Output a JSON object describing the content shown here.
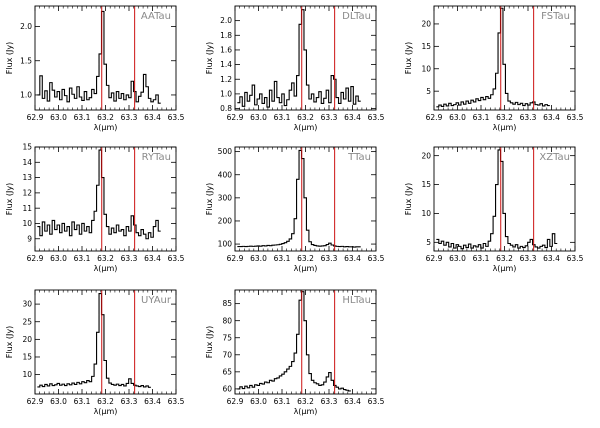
{
  "colors": {
    "line": "#000000",
    "marker": "#cc1010",
    "frame": "#000000",
    "title": "#8a8a8a"
  },
  "chart_data": [
    {
      "type": "line",
      "title": "AATau",
      "xlabel": "λ(μm)",
      "ylabel": "Flux (Jy)",
      "xlim": [
        62.9,
        63.5
      ],
      "ylim": [
        0.78,
        2.3
      ],
      "xticks": [
        62.9,
        63.0,
        63.1,
        63.2,
        63.3,
        63.4,
        63.5
      ],
      "xtick_labels": [
        "62.9",
        "63.0",
        "63.1",
        "63.2",
        "63.3",
        "63.4",
        "63.5"
      ],
      "yticks": [
        1.0,
        1.5,
        2.0
      ],
      "ytick_labels": [
        "1.0",
        "1.5",
        "2.0"
      ],
      "vlines": [
        63.184,
        63.324
      ],
      "series": [
        {
          "name": "AATau",
          "x_start": 62.91,
          "x_step": 0.0105,
          "values": [
            1.0,
            1.28,
            0.95,
            1.06,
            0.91,
            1.18,
            1.07,
            0.97,
            1.05,
            0.93,
            1.08,
            0.99,
            0.9,
            1.1,
            1.01,
            0.95,
            1.12,
            0.97,
            0.92,
            1.05,
            0.93,
            0.96,
            1.08,
            1.02,
            1.27,
            1.6,
            2.22,
            1.45,
            1.14,
            0.96,
            1.03,
            0.91,
            1.05,
            0.95,
            1.02,
            0.93,
            1.0,
            0.96,
            1.2,
            1.05,
            0.9,
            0.98,
            1.04,
            1.3,
            1.12,
            0.95,
            0.9,
            0.93,
            1.0,
            0.88
          ]
        }
      ]
    },
    {
      "type": "line",
      "title": "DLTau",
      "xlabel": "λ(μm)",
      "ylabel": "Flux (Jy)",
      "xlim": [
        62.9,
        63.5
      ],
      "ylim": [
        0.78,
        2.2
      ],
      "xticks": [
        62.9,
        63.0,
        63.1,
        63.2,
        63.3,
        63.4,
        63.5
      ],
      "xtick_labels": [
        "62.9",
        "63.0",
        "63.1",
        "63.2",
        "63.3",
        "63.4",
        "63.5"
      ],
      "yticks": [
        0.8,
        1.0,
        1.2,
        1.4,
        1.6,
        1.8,
        2.0
      ],
      "ytick_labels": [
        "0.8",
        "1.0",
        "1.2",
        "1.4",
        "1.6",
        "1.8",
        "2.0"
      ],
      "vlines": [
        63.184,
        63.324
      ],
      "series": [
        {
          "name": "DLTau",
          "x_start": 62.91,
          "x_step": 0.0105,
          "values": [
            0.88,
            0.96,
            0.83,
            1.02,
            0.9,
            0.98,
            1.12,
            0.85,
            0.93,
            1.0,
            0.87,
            0.95,
            0.82,
            1.05,
            0.9,
            1.17,
            0.95,
            0.88,
            1.0,
            0.84,
            0.92,
            1.05,
            1.15,
            0.97,
            1.25,
            1.95,
            2.15,
            1.6,
            1.12,
            0.93,
            1.0,
            0.89,
            0.95,
            1.03,
            0.87,
            0.94,
            1.05,
            0.88,
            1.25,
            1.2,
            0.95,
            0.87,
            1.02,
            0.93,
            1.08,
            0.9,
            1.1,
            0.86,
            0.97,
            0.9
          ]
        }
      ]
    },
    {
      "type": "line",
      "title": "FSTau",
      "xlabel": "λ(μm)",
      "ylabel": "Flux (Jy)",
      "xlim": [
        62.9,
        63.5
      ],
      "ylim": [
        0.8,
        24
      ],
      "xticks": [
        62.9,
        63.0,
        63.1,
        63.2,
        63.3,
        63.4,
        63.5
      ],
      "xtick_labels": [
        "62.9",
        "63.0",
        "63.1",
        "63.2",
        "63.3",
        "63.4",
        "63.5"
      ],
      "yticks": [
        5,
        10,
        15,
        20
      ],
      "ytick_labels": [
        "5",
        "10",
        "15",
        "20"
      ],
      "vlines": [
        63.184,
        63.324
      ],
      "series": [
        {
          "name": "FSTau",
          "x_start": 62.91,
          "x_step": 0.0105,
          "values": [
            1.5,
            1.9,
            1.6,
            2.1,
            1.7,
            2.3,
            1.8,
            2.0,
            2.4,
            1.9,
            2.6,
            2.1,
            2.8,
            2.3,
            3.0,
            2.6,
            3.3,
            2.9,
            3.6,
            3.1,
            3.8,
            3.4,
            4.2,
            5.5,
            9.0,
            18.0,
            23.5,
            11.0,
            4.5,
            2.8,
            2.4,
            2.1,
            2.5,
            2.0,
            2.3,
            1.8,
            2.2,
            1.9,
            2.4,
            2.6,
            2.0,
            1.9,
            2.2,
            1.7,
            2.0,
            1.8
          ]
        }
      ]
    },
    {
      "type": "line",
      "title": "RYTau",
      "xlabel": "λ(μm)",
      "ylabel": "Flux (Jy)",
      "xlim": [
        62.9,
        63.5
      ],
      "ylim": [
        8.2,
        15.0
      ],
      "xticks": [
        62.9,
        63.0,
        63.1,
        63.2,
        63.3,
        63.4,
        63.5
      ],
      "xtick_labels": [
        "62.9",
        "63.0",
        "63.1",
        "63.2",
        "63.3",
        "63.4",
        "63.5"
      ],
      "yticks": [
        9,
        10,
        11,
        12,
        13,
        14,
        15
      ],
      "ytick_labels": [
        "9",
        "10",
        "11",
        "12",
        "13",
        "14",
        "15"
      ],
      "vlines": [
        63.184,
        63.324
      ],
      "series": [
        {
          "name": "RYTau",
          "x_start": 62.91,
          "x_step": 0.0105,
          "values": [
            9.8,
            9.2,
            10.1,
            9.5,
            9.9,
            9.3,
            10.2,
            9.6,
            9.9,
            9.4,
            10.0,
            9.5,
            9.8,
            9.2,
            10.1,
            9.6,
            9.9,
            9.3,
            10.0,
            9.5,
            9.8,
            9.4,
            10.2,
            10.8,
            12.5,
            14.8,
            13.0,
            10.6,
            9.8,
            9.3,
            9.7,
            9.4,
            9.9,
            9.5,
            9.6,
            9.2,
            9.8,
            9.5,
            10.5,
            9.9,
            9.4,
            9.2,
            9.6,
            9.3,
            9.0,
            9.4,
            9.1,
            9.8,
            10.2,
            9.5
          ]
        }
      ]
    },
    {
      "type": "line",
      "title": "TTau",
      "xlabel": "λ(μm)",
      "ylabel": "Flux (Jy)",
      "xlim": [
        62.9,
        63.5
      ],
      "ylim": [
        70,
        520
      ],
      "xticks": [
        62.9,
        63.0,
        63.1,
        63.2,
        63.3,
        63.4,
        63.5
      ],
      "xtick_labels": [
        "62.9",
        "63.0",
        "63.1",
        "63.2",
        "63.3",
        "63.4",
        "63.5"
      ],
      "yticks": [
        100,
        200,
        300,
        400,
        500
      ],
      "ytick_labels": [
        "100",
        "200",
        "300",
        "400",
        "500"
      ],
      "vlines": [
        63.184,
        63.324
      ],
      "series": [
        {
          "name": "TTau",
          "x_start": 62.91,
          "x_step": 0.0105,
          "values": [
            89,
            89,
            90,
            89,
            90,
            91,
            90,
            91,
            92,
            91,
            93,
            92,
            94,
            93,
            95,
            96,
            97,
            99,
            102,
            106,
            112,
            122,
            145,
            210,
            380,
            505,
            470,
            300,
            160,
            110,
            98,
            94,
            92,
            91,
            92,
            93,
            98,
            104,
            96,
            92,
            90,
            89,
            90,
            88,
            89,
            88,
            88,
            87,
            88,
            88
          ]
        }
      ]
    },
    {
      "type": "line",
      "title": "XZTau",
      "xlabel": "λ(μm)",
      "ylabel": "Flux (Jy)",
      "xlim": [
        62.9,
        63.5
      ],
      "ylim": [
        3.5,
        21.5
      ],
      "xticks": [
        62.9,
        63.0,
        63.1,
        63.2,
        63.3,
        63.4,
        63.5
      ],
      "xtick_labels": [
        "62.9",
        "63.0",
        "63.1",
        "63.2",
        "63.3",
        "63.4",
        "63.5"
      ],
      "yticks": [
        5,
        10,
        15,
        20
      ],
      "ytick_labels": [
        "5",
        "10",
        "15",
        "20"
      ],
      "vlines": [
        63.184,
        63.324
      ],
      "series": [
        {
          "name": "XZTau",
          "x_start": 62.91,
          "x_step": 0.0105,
          "values": [
            5.5,
            4.8,
            5.2,
            4.5,
            5.0,
            4.2,
            4.8,
            4.0,
            4.6,
            4.3,
            3.9,
            4.5,
            4.1,
            4.7,
            4.0,
            4.4,
            4.2,
            4.6,
            4.0,
            4.8,
            4.3,
            5.2,
            6.5,
            9.5,
            15.0,
            21.0,
            19.0,
            10.0,
            6.0,
            4.8,
            4.5,
            4.2,
            4.6,
            4.0,
            4.3,
            4.1,
            4.4,
            5.0,
            5.5,
            4.6,
            4.2,
            4.0,
            4.3,
            4.5,
            4.1,
            5.5,
            4.3,
            6.5,
            4.8
          ]
        }
      ]
    },
    {
      "type": "line",
      "title": "UYAur",
      "xlabel": "λ(μm)",
      "ylabel": "Flux (Jy)",
      "xlim": [
        62.9,
        63.5
      ],
      "ylim": [
        4.5,
        34
      ],
      "xticks": [
        62.9,
        63.0,
        63.1,
        63.2,
        63.3,
        63.4,
        63.5
      ],
      "xtick_labels": [
        "62.9",
        "63.0",
        "63.1",
        "63.2",
        "63.3",
        "63.4",
        "63.5"
      ],
      "yticks": [
        10,
        15,
        20,
        25,
        30
      ],
      "ytick_labels": [
        "10",
        "15",
        "20",
        "25",
        "30"
      ],
      "vlines": [
        63.184,
        63.324
      ],
      "series": [
        {
          "name": "UYAur",
          "x_start": 62.91,
          "x_step": 0.0105,
          "values": [
            6.5,
            7.0,
            6.6,
            7.2,
            6.8,
            7.4,
            6.9,
            7.1,
            7.5,
            7.0,
            7.3,
            6.9,
            7.4,
            7.1,
            7.6,
            7.2,
            7.8,
            7.4,
            8.0,
            7.7,
            8.3,
            8.0,
            9.5,
            13.0,
            22.0,
            33.0,
            27.0,
            14.0,
            9.0,
            7.6,
            7.2,
            7.0,
            7.3,
            6.9,
            7.2,
            6.8,
            7.5,
            8.8,
            7.5,
            7.0,
            6.8,
            6.6,
            6.9,
            6.5,
            6.8,
            6.4
          ]
        }
      ]
    },
    {
      "type": "line",
      "title": "HLTau",
      "xlabel": "λ(μm)",
      "ylabel": "Flux (Jy)",
      "xlim": [
        62.9,
        63.5
      ],
      "ylim": [
        58.5,
        89
      ],
      "xticks": [
        62.9,
        63.0,
        63.1,
        63.2,
        63.3,
        63.4,
        63.5
      ],
      "xtick_labels": [
        "62.9",
        "63.0",
        "63.1",
        "63.2",
        "63.3",
        "63.4",
        "63.5"
      ],
      "yticks": [
        60,
        65,
        70,
        75,
        80,
        85
      ],
      "ytick_labels": [
        "60",
        "65",
        "70",
        "75",
        "80",
        "85"
      ],
      "vlines": [
        63.184,
        63.324
      ],
      "series": [
        {
          "name": "HLTau",
          "x_start": 62.91,
          "x_step": 0.0105,
          "values": [
            60.0,
            60.6,
            60.1,
            60.8,
            60.3,
            61.0,
            60.5,
            61.2,
            61.0,
            61.6,
            61.4,
            62.0,
            61.8,
            62.5,
            62.3,
            63.0,
            63.2,
            63.8,
            64.3,
            65.0,
            65.8,
            66.6,
            68.0,
            70.5,
            76.0,
            86.0,
            88.5,
            80.0,
            70.0,
            64.5,
            62.5,
            61.8,
            61.5,
            61.0,
            61.2,
            62.0,
            63.5,
            64.8,
            62.5,
            61.0,
            60.5,
            60.0,
            60.2,
            59.8,
            59.6,
            59.4
          ]
        }
      ]
    }
  ]
}
